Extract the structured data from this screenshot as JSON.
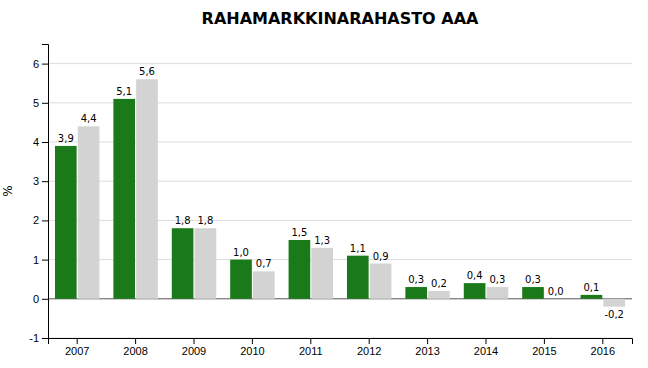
{
  "chart_data": {
    "type": "bar",
    "title": "RAHAMARKKINARAHASTO AAA",
    "ylabel": "%",
    "categories": [
      "2007",
      "2008",
      "2009",
      "2010",
      "2011",
      "2012",
      "2013",
      "2014",
      "2015",
      "2016"
    ],
    "series": [
      {
        "color": "#1a7a1a",
        "values": [
          3.9,
          5.1,
          1.8,
          1.0,
          1.5,
          1.1,
          0.3,
          0.4,
          0.3,
          0.1
        ],
        "value_labels": [
          "3,9",
          "5,1",
          "1,8",
          "1,0",
          "1,5",
          "1,1",
          "0,3",
          "0,4",
          "0,3",
          "0,1"
        ]
      },
      {
        "color": "#d3d3d3",
        "values": [
          4.4,
          5.6,
          1.8,
          0.7,
          1.3,
          0.9,
          0.2,
          0.3,
          0.0,
          -0.2
        ],
        "value_labels": [
          "4,4",
          "5,6",
          "1,8",
          "0,7",
          "1,3",
          "0,9",
          "0,2",
          "0,3",
          "0,0",
          "-0,2"
        ]
      }
    ],
    "ylim": [
      -1,
      6.5
    ],
    "yticks": [
      -1,
      0,
      1,
      2,
      3,
      4,
      5,
      6
    ],
    "grid": true,
    "data_labels": true
  }
}
